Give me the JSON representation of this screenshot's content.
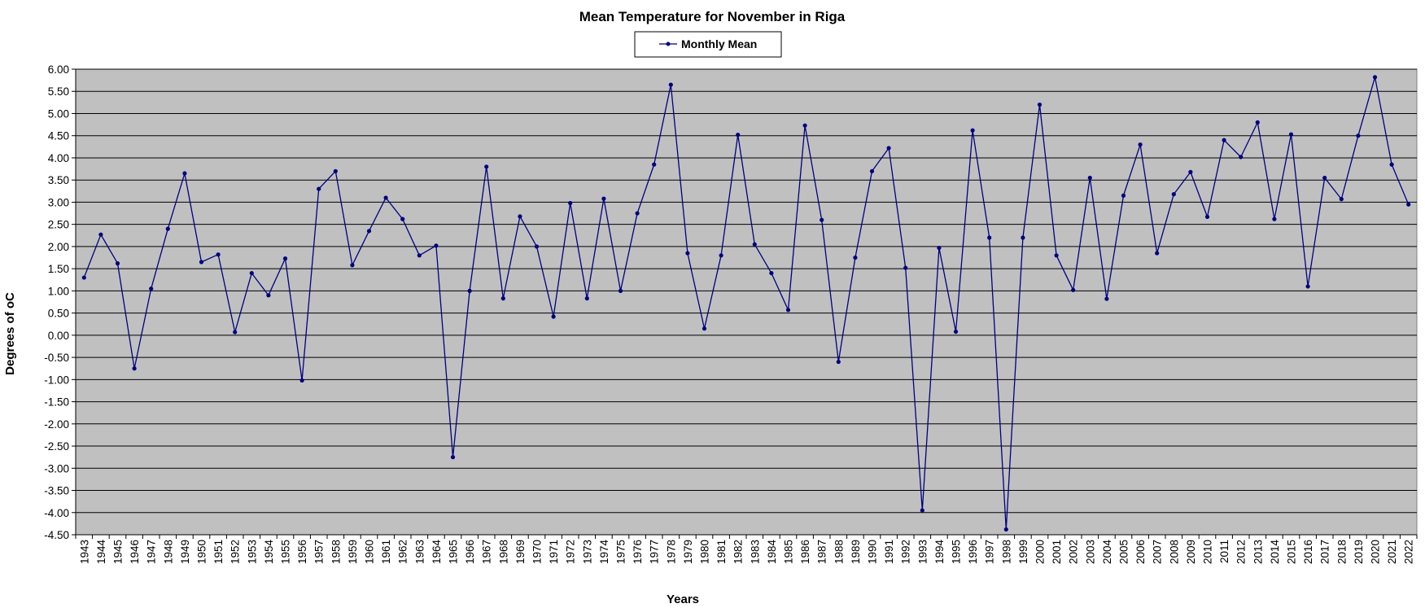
{
  "chart_data": {
    "type": "line",
    "title": "Mean Temperature for November in Riga",
    "xlabel": "Years",
    "ylabel": "Degrees of oC",
    "ylim": [
      -4.5,
      6.0
    ],
    "y_step": 0.5,
    "grid": true,
    "legend_position": "top-center",
    "colors": {
      "line": "#000080",
      "plot_background": "#c0c0c0",
      "grid": "#000000"
    },
    "categories": [
      "1943",
      "1944",
      "1945",
      "1946",
      "1947",
      "1948",
      "1949",
      "1950",
      "1951",
      "1952",
      "1953",
      "1954",
      "1955",
      "1956",
      "1957",
      "1958",
      "1959",
      "1960",
      "1961",
      "1962",
      "1963",
      "1964",
      "1965",
      "1966",
      "1967",
      "1968",
      "1969",
      "1970",
      "1971",
      "1972",
      "1973",
      "1974",
      "1975",
      "1976",
      "1977",
      "1978",
      "1979",
      "1980",
      "1981",
      "1982",
      "1983",
      "1984",
      "1985",
      "1986",
      "1987",
      "1988",
      "1989",
      "1990",
      "1991",
      "1992",
      "1993",
      "1994",
      "1995",
      "1996",
      "1997",
      "1998",
      "1999",
      "2000",
      "2001",
      "2002",
      "2003",
      "2004",
      "2005",
      "2006",
      "2007",
      "2008",
      "2009",
      "2010",
      "2011",
      "2012",
      "2013",
      "2014",
      "2015",
      "2016",
      "2017",
      "2018",
      "2019",
      "2020",
      "2021",
      "2022"
    ],
    "y_ticks": [
      "-4.50",
      "-4.00",
      "-3.50",
      "-3.00",
      "-2.50",
      "-2.00",
      "-1.50",
      "-1.00",
      "-0.50",
      "0.00",
      "0.50",
      "1.00",
      "1.50",
      "2.00",
      "2.50",
      "3.00",
      "3.50",
      "4.00",
      "4.50",
      "5.00",
      "5.50",
      "6.00"
    ],
    "series": [
      {
        "name": "Monthly Mean",
        "values": [
          1.3,
          2.27,
          1.62,
          -0.75,
          1.05,
          2.4,
          3.65,
          1.65,
          1.82,
          0.07,
          1.4,
          0.9,
          1.73,
          -1.02,
          3.3,
          3.7,
          1.58,
          2.35,
          3.1,
          2.62,
          1.8,
          2.02,
          -2.75,
          1.0,
          3.8,
          0.83,
          2.68,
          2.0,
          0.42,
          2.98,
          0.83,
          3.08,
          1.0,
          2.75,
          3.85,
          5.65,
          1.85,
          0.15,
          1.8,
          4.52,
          2.05,
          1.4,
          0.57,
          4.73,
          2.6,
          -0.6,
          1.75,
          3.7,
          4.22,
          1.52,
          -3.95,
          1.97,
          0.08,
          4.62,
          2.2,
          -4.38,
          2.2,
          5.2,
          1.8,
          1.02,
          3.55,
          0.82,
          3.15,
          4.3,
          1.85,
          3.18,
          3.68,
          2.67,
          4.4,
          4.02,
          4.8,
          2.62,
          4.53,
          1.1,
          3.55,
          3.07,
          4.5,
          5.82,
          3.85,
          2.95
        ]
      }
    ]
  }
}
